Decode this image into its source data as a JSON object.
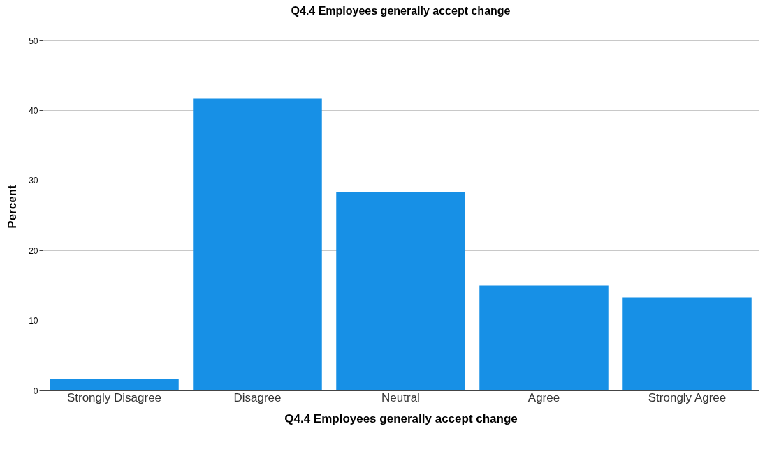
{
  "chart_data": {
    "type": "bar",
    "title": "Q4.4 Employees generally accept change",
    "xlabel": "Q4.4 Employees generally accept change",
    "ylabel": "Percent",
    "categories": [
      "Strongly Disagree",
      "Disagree",
      "Neutral",
      "Agree",
      "Strongly Agree"
    ],
    "values": [
      1.7,
      41.7,
      28.3,
      15.0,
      13.3
    ],
    "color": "#1790e6",
    "ylim": [
      0,
      52.6
    ],
    "yticks": [
      0,
      10,
      20,
      30,
      40,
      50
    ],
    "grid": "y"
  }
}
